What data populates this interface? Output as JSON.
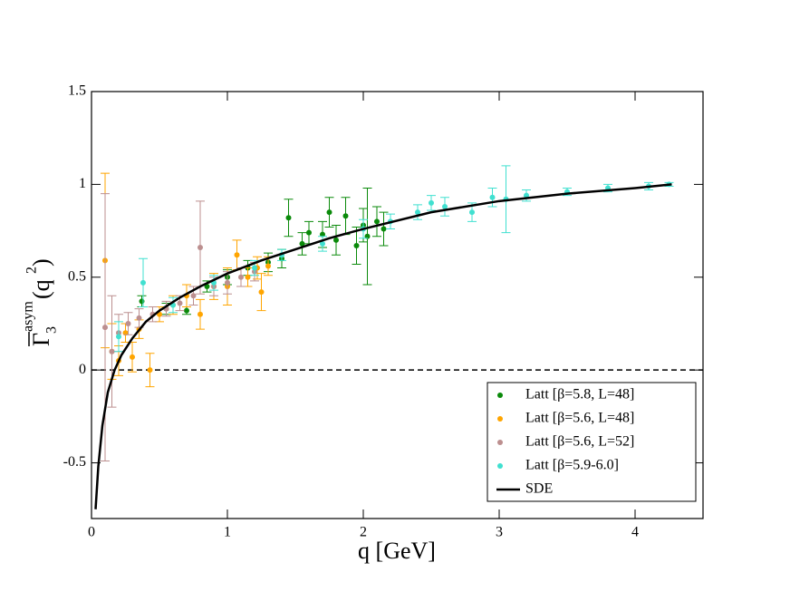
{
  "chart_data": {
    "type": "scatter",
    "xlabel": "q [GeV]",
    "ylabel_parts": [
      "Γ",
      "3",
      "asym",
      "(q",
      "2",
      ")"
    ],
    "xlim": [
      0,
      4.5
    ],
    "ylim": [
      -0.8,
      1.5
    ],
    "xticks": [
      0,
      1,
      2,
      3,
      4
    ],
    "yticks": [
      -0.5,
      0,
      0.5,
      1,
      1.5
    ],
    "hline": 0,
    "legend": "lower right",
    "series": [
      {
        "name": "Latt [β=5.8, L=48]",
        "color": "#0a8a0a",
        "mode": "markers",
        "x": [
          0.37,
          0.55,
          0.7,
          0.85,
          1.0,
          1.15,
          1.3,
          1.4,
          1.45,
          1.55,
          1.6,
          1.7,
          1.75,
          1.8,
          1.87,
          1.95,
          2.0,
          2.03,
          2.1,
          2.15
        ],
        "values": [
          0.37,
          0.33,
          0.32,
          0.45,
          0.5,
          0.55,
          0.58,
          0.6,
          0.82,
          0.68,
          0.74,
          0.73,
          0.85,
          0.7,
          0.83,
          0.67,
          0.78,
          0.72,
          0.8,
          0.76
        ],
        "errors": [
          0.03,
          0.03,
          0.02,
          0.03,
          0.04,
          0.04,
          0.05,
          0.05,
          0.1,
          0.06,
          0.06,
          0.07,
          0.08,
          0.08,
          0.1,
          0.1,
          0.09,
          0.26,
          0.08,
          0.09
        ]
      },
      {
        "name": "Latt [β=5.6, L=48]",
        "color": "#ffa500",
        "mode": "markers",
        "x": [
          0.1,
          0.15,
          0.2,
          0.25,
          0.3,
          0.35,
          0.43,
          0.5,
          0.6,
          0.7,
          0.8,
          0.9,
          1.0,
          1.07,
          1.15,
          1.22,
          1.25,
          1.3
        ],
        "values": [
          0.59,
          0.1,
          0.05,
          0.2,
          0.07,
          0.22,
          0.0,
          0.3,
          0.35,
          0.4,
          0.3,
          0.45,
          0.45,
          0.62,
          0.5,
          0.55,
          0.42,
          0.56
        ],
        "errors": [
          0.47,
          0.15,
          0.08,
          0.05,
          0.08,
          0.05,
          0.09,
          0.04,
          0.05,
          0.06,
          0.08,
          0.07,
          0.1,
          0.08,
          0.05,
          0.06,
          0.1,
          0.05
        ]
      },
      {
        "name": "Latt [β=5.6, L=52]",
        "color": "#bc8f8f",
        "mode": "markers",
        "x": [
          0.1,
          0.15,
          0.2,
          0.27,
          0.35,
          0.45,
          0.55,
          0.65,
          0.75,
          0.8,
          0.9,
          1.0,
          1.1,
          1.2
        ],
        "values": [
          0.23,
          0.1,
          0.2,
          0.25,
          0.28,
          0.3,
          0.33,
          0.36,
          0.4,
          0.66,
          0.45,
          0.47,
          0.5,
          0.53
        ],
        "errors": [
          0.72,
          0.3,
          0.1,
          0.06,
          0.05,
          0.04,
          0.04,
          0.04,
          0.05,
          0.25,
          0.05,
          0.06,
          0.05,
          0.05
        ]
      },
      {
        "name": "Latt [β=5.9-6.0]",
        "color": "#40e0d0",
        "mode": "markers",
        "x": [
          0.2,
          0.38,
          0.6,
          0.9,
          1.2,
          1.4,
          1.7,
          2.0,
          2.2,
          2.4,
          2.5,
          2.6,
          2.8,
          2.95,
          3.05,
          3.2,
          3.5,
          3.8,
          4.1,
          4.25
        ],
        "values": [
          0.18,
          0.47,
          0.35,
          0.47,
          0.55,
          0.62,
          0.68,
          0.76,
          0.8,
          0.85,
          0.9,
          0.88,
          0.85,
          0.93,
          0.92,
          0.94,
          0.96,
          0.98,
          0.99,
          1.0
        ],
        "errors": [
          0.08,
          0.13,
          0.04,
          0.04,
          0.04,
          0.03,
          0.04,
          0.05,
          0.04,
          0.04,
          0.04,
          0.05,
          0.05,
          0.05,
          0.18,
          0.03,
          0.02,
          0.02,
          0.02,
          0.01
        ]
      },
      {
        "name": "SDE",
        "color": "#000000",
        "mode": "line",
        "x": [
          0.03,
          0.05,
          0.08,
          0.12,
          0.17,
          0.22,
          0.3,
          0.4,
          0.5,
          0.65,
          0.8,
          1.0,
          1.25,
          1.5,
          1.75,
          2.0,
          2.5,
          3.0,
          3.5,
          4.0,
          4.27
        ],
        "values": [
          -0.75,
          -0.52,
          -0.3,
          -0.12,
          0.0,
          0.08,
          0.17,
          0.26,
          0.32,
          0.39,
          0.45,
          0.52,
          0.59,
          0.65,
          0.71,
          0.76,
          0.85,
          0.91,
          0.95,
          0.98,
          1.0
        ]
      }
    ]
  }
}
